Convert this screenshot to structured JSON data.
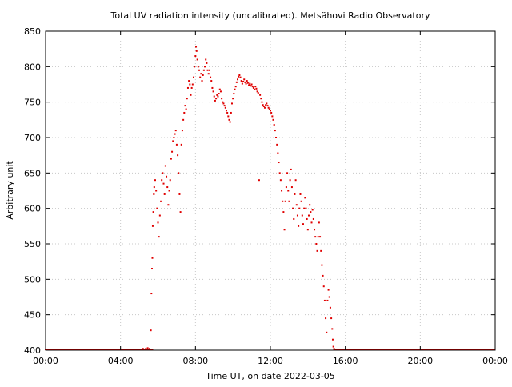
{
  "chart_data": {
    "type": "scatter",
    "title": "Total UV radiation intensity (uncalibrated). Metsähovi Radio Observatory",
    "xlabel": "Time UT, on date 2022-03-05",
    "ylabel": "Arbitrary unit",
    "xlim_hours": [
      0,
      24
    ],
    "ylim": [
      400,
      850
    ],
    "x_ticks": [
      {
        "hour": 0,
        "label": "00:00"
      },
      {
        "hour": 4,
        "label": "04:00"
      },
      {
        "hour": 8,
        "label": "08:00"
      },
      {
        "hour": 12,
        "label": "12:00"
      },
      {
        "hour": 16,
        "label": "16:00"
      },
      {
        "hour": 20,
        "label": "20:00"
      },
      {
        "hour": 24,
        "label": "00:00"
      }
    ],
    "y_ticks": [
      {
        "value": 400,
        "label": "400"
      },
      {
        "value": 450,
        "label": "450"
      },
      {
        "value": 500,
        "label": "500"
      },
      {
        "value": 550,
        "label": "550"
      },
      {
        "value": 600,
        "label": "600"
      },
      {
        "value": 650,
        "label": "650"
      },
      {
        "value": 700,
        "label": "700"
      },
      {
        "value": 750,
        "label": "750"
      },
      {
        "value": 800,
        "label": "800"
      },
      {
        "value": 850,
        "label": "850"
      }
    ],
    "grid": true,
    "series": [
      {
        "color": "#e00000",
        "baseline": {
          "value": 400,
          "ranges_hours": [
            [
              0,
              5.7
            ],
            [
              15.4,
              24
            ]
          ]
        },
        "points": [
          [
            5.2,
            402
          ],
          [
            5.35,
            402
          ],
          [
            5.45,
            403
          ],
          [
            5.55,
            402
          ],
          [
            5.62,
            428
          ],
          [
            5.65,
            480
          ],
          [
            5.68,
            515
          ],
          [
            5.7,
            530
          ],
          [
            5.72,
            575
          ],
          [
            5.75,
            595
          ],
          [
            5.78,
            620
          ],
          [
            5.8,
            630
          ],
          [
            5.85,
            640
          ],
          [
            5.9,
            625
          ],
          [
            5.95,
            600
          ],
          [
            6.0,
            580
          ],
          [
            6.05,
            560
          ],
          [
            6.1,
            590
          ],
          [
            6.15,
            610
          ],
          [
            6.2,
            640
          ],
          [
            6.25,
            650
          ],
          [
            6.3,
            635
          ],
          [
            6.35,
            620
          ],
          [
            6.4,
            660
          ],
          [
            6.45,
            645
          ],
          [
            6.5,
            630
          ],
          [
            6.55,
            605
          ],
          [
            6.6,
            625
          ],
          [
            6.65,
            640
          ],
          [
            6.7,
            670
          ],
          [
            6.75,
            680
          ],
          [
            6.8,
            695
          ],
          [
            6.85,
            700
          ],
          [
            6.9,
            705
          ],
          [
            6.95,
            710
          ],
          [
            7.0,
            690
          ],
          [
            7.05,
            675
          ],
          [
            7.1,
            650
          ],
          [
            7.15,
            620
          ],
          [
            7.2,
            595
          ],
          [
            7.25,
            690
          ],
          [
            7.3,
            710
          ],
          [
            7.35,
            725
          ],
          [
            7.4,
            735
          ],
          [
            7.45,
            745
          ],
          [
            7.5,
            740
          ],
          [
            7.55,
            755
          ],
          [
            7.6,
            770
          ],
          [
            7.65,
            780
          ],
          [
            7.7,
            775
          ],
          [
            7.75,
            760
          ],
          [
            7.8,
            770
          ],
          [
            7.85,
            775
          ],
          [
            7.9,
            785
          ],
          [
            7.95,
            800
          ],
          [
            8.0,
            815
          ],
          [
            8.03,
            828
          ],
          [
            8.06,
            822
          ],
          [
            8.1,
            810
          ],
          [
            8.15,
            800
          ],
          [
            8.2,
            795
          ],
          [
            8.25,
            785
          ],
          [
            8.3,
            790
          ],
          [
            8.35,
            780
          ],
          [
            8.4,
            788
          ],
          [
            8.45,
            795
          ],
          [
            8.5,
            800
          ],
          [
            8.55,
            810
          ],
          [
            8.6,
            805
          ],
          [
            8.65,
            795
          ],
          [
            8.7,
            790
          ],
          [
            8.75,
            795
          ],
          [
            8.8,
            785
          ],
          [
            8.85,
            780
          ],
          [
            8.9,
            770
          ],
          [
            8.95,
            765
          ],
          [
            9.0,
            758
          ],
          [
            9.05,
            752
          ],
          [
            9.1,
            755
          ],
          [
            9.15,
            760
          ],
          [
            9.2,
            758
          ],
          [
            9.25,
            762
          ],
          [
            9.3,
            768
          ],
          [
            9.35,
            765
          ],
          [
            9.4,
            755
          ],
          [
            9.45,
            750
          ],
          [
            9.5,
            748
          ],
          [
            9.55,
            745
          ],
          [
            9.6,
            742
          ],
          [
            9.65,
            738
          ],
          [
            9.7,
            735
          ],
          [
            9.75,
            730
          ],
          [
            9.8,
            725
          ],
          [
            9.85,
            722
          ],
          [
            9.9,
            735
          ],
          [
            9.95,
            748
          ],
          [
            10.0,
            755
          ],
          [
            10.05,
            762
          ],
          [
            10.1,
            768
          ],
          [
            10.15,
            772
          ],
          [
            10.2,
            778
          ],
          [
            10.25,
            782
          ],
          [
            10.3,
            786
          ],
          [
            10.35,
            788
          ],
          [
            10.4,
            785
          ],
          [
            10.45,
            780
          ],
          [
            10.5,
            776
          ],
          [
            10.55,
            779
          ],
          [
            10.6,
            782
          ],
          [
            10.65,
            778
          ],
          [
            10.7,
            776
          ],
          [
            10.75,
            780
          ],
          [
            10.8,
            777
          ],
          [
            10.85,
            774
          ],
          [
            10.9,
            776
          ],
          [
            10.95,
            773
          ],
          [
            11.0,
            775
          ],
          [
            11.05,
            772
          ],
          [
            11.1,
            770
          ],
          [
            11.15,
            768
          ],
          [
            11.2,
            772
          ],
          [
            11.25,
            769
          ],
          [
            11.3,
            765
          ],
          [
            11.35,
            763
          ],
          [
            11.4,
            640
          ],
          [
            11.45,
            760
          ],
          [
            11.5,
            755
          ],
          [
            11.55,
            750
          ],
          [
            11.6,
            746
          ],
          [
            11.65,
            744
          ],
          [
            11.7,
            742
          ],
          [
            11.75,
            746
          ],
          [
            11.8,
            748
          ],
          [
            11.85,
            745
          ],
          [
            11.9,
            742
          ],
          [
            11.95,
            740
          ],
          [
            12.0,
            738
          ],
          [
            12.05,
            735
          ],
          [
            12.1,
            730
          ],
          [
            12.15,
            725
          ],
          [
            12.2,
            718
          ],
          [
            12.25,
            710
          ],
          [
            12.3,
            700
          ],
          [
            12.35,
            690
          ],
          [
            12.4,
            678
          ],
          [
            12.45,
            665
          ],
          [
            12.5,
            650
          ],
          [
            12.55,
            640
          ],
          [
            12.6,
            625
          ],
          [
            12.65,
            610
          ],
          [
            12.7,
            595
          ],
          [
            12.75,
            570
          ],
          [
            12.8,
            610
          ],
          [
            12.85,
            630
          ],
          [
            12.9,
            650
          ],
          [
            12.95,
            625
          ],
          [
            13.0,
            610
          ],
          [
            13.05,
            640
          ],
          [
            13.1,
            655
          ],
          [
            13.15,
            630
          ],
          [
            13.2,
            600
          ],
          [
            13.25,
            585
          ],
          [
            13.3,
            620
          ],
          [
            13.35,
            640
          ],
          [
            13.4,
            605
          ],
          [
            13.45,
            590
          ],
          [
            13.5,
            575
          ],
          [
            13.55,
            600
          ],
          [
            13.6,
            620
          ],
          [
            13.65,
            610
          ],
          [
            13.7,
            590
          ],
          [
            13.75,
            578
          ],
          [
            13.8,
            600
          ],
          [
            13.85,
            615
          ],
          [
            13.9,
            600
          ],
          [
            13.95,
            585
          ],
          [
            14.0,
            570
          ],
          [
            14.05,
            590
          ],
          [
            14.1,
            605
          ],
          [
            14.15,
            595
          ],
          [
            14.2,
            580
          ],
          [
            14.25,
            598
          ],
          [
            14.3,
            585
          ],
          [
            14.35,
            570
          ],
          [
            14.4,
            560
          ],
          [
            14.45,
            550
          ],
          [
            14.5,
            540
          ],
          [
            14.55,
            560
          ],
          [
            14.6,
            580
          ],
          [
            14.65,
            560
          ],
          [
            14.7,
            540
          ],
          [
            14.75,
            520
          ],
          [
            14.8,
            505
          ],
          [
            14.85,
            490
          ],
          [
            14.9,
            470
          ],
          [
            14.95,
            445
          ],
          [
            15.0,
            425
          ],
          [
            15.05,
            470
          ],
          [
            15.1,
            485
          ],
          [
            15.15,
            475
          ],
          [
            15.2,
            460
          ],
          [
            15.25,
            445
          ],
          [
            15.3,
            430
          ],
          [
            15.33,
            415
          ],
          [
            15.36,
            405
          ],
          [
            15.4,
            402
          ],
          [
            15.5,
            401
          ]
        ]
      }
    ]
  }
}
